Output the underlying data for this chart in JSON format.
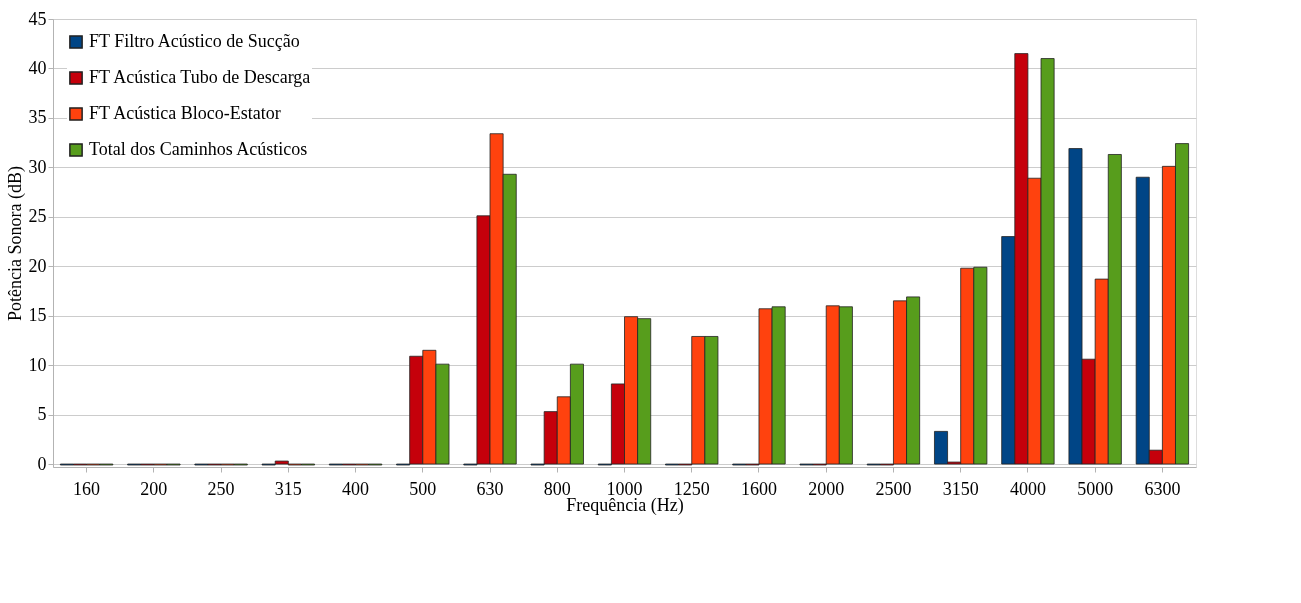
{
  "chart_data": {
    "type": "bar",
    "xlabel": "Frequência (Hz)",
    "ylabel": "Potência Sonora (dB)",
    "categories": [
      "160",
      "200",
      "250",
      "315",
      "400",
      "500",
      "630",
      "800",
      "1000",
      "1250",
      "1600",
      "2000",
      "2500",
      "3150",
      "4000",
      "5000",
      "6300"
    ],
    "series": [
      {
        "name": "FT Filtro Acústico de Sucção",
        "color": "#004586",
        "values": [
          -0.1,
          -0.1,
          -0.1,
          -0.1,
          -0.1,
          -0.1,
          -0.1,
          -0.1,
          -0.1,
          -0.1,
          -0.1,
          -0.1,
          -0.1,
          3.3,
          23.0,
          31.9,
          29.0
        ]
      },
      {
        "name": "FT Acústica Tubo de Descarga",
        "color": "#c5000b",
        "values": [
          -0.1,
          -0.1,
          -0.1,
          0.3,
          -0.1,
          10.9,
          25.1,
          5.3,
          8.1,
          -0.1,
          -0.1,
          -0.1,
          -0.1,
          0.2,
          41.5,
          10.6,
          1.4
        ]
      },
      {
        "name": "FT Acústica Bloco-Estator",
        "color": "#ff420e",
        "values": [
          -0.1,
          -0.1,
          -0.1,
          -0.1,
          -0.1,
          11.5,
          33.4,
          6.8,
          14.9,
          12.9,
          15.7,
          16.0,
          16.5,
          19.8,
          28.9,
          18.7,
          30.1
        ]
      },
      {
        "name": "Total dos Caminhos Acústicos",
        "color": "#579d1c",
        "values": [
          -0.1,
          -0.1,
          -0.1,
          -0.1,
          -0.1,
          10.1,
          29.3,
          10.1,
          14.7,
          12.9,
          15.9,
          15.9,
          16.9,
          19.9,
          41.0,
          31.3,
          32.4
        ]
      }
    ],
    "ylim": [
      -0.3,
      45
    ],
    "yticks": [
      0,
      5,
      10,
      15,
      20,
      25,
      30,
      35,
      40,
      45
    ],
    "grid": "y",
    "legend": "top left"
  }
}
